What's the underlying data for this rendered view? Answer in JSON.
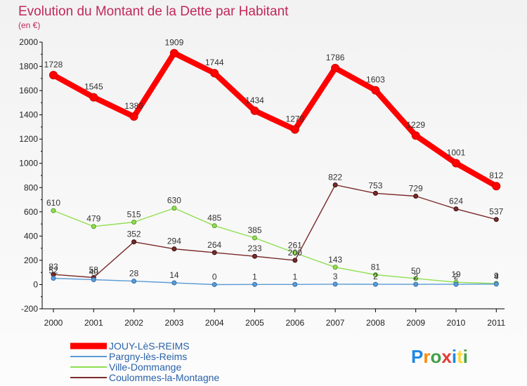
{
  "chart_data": {
    "type": "line",
    "title": "Evolution du Montant de la Dette par Habitant",
    "subtitle": "(en €)",
    "x": [
      "2000",
      "2001",
      "2002",
      "2003",
      "2004",
      "2005",
      "2006",
      "2007",
      "2008",
      "2009",
      "2010",
      "2011"
    ],
    "ylim": [
      -200,
      2000
    ],
    "yticks": [
      -200,
      0,
      200,
      400,
      600,
      800,
      1000,
      1200,
      1400,
      1600,
      1800,
      2000
    ],
    "grid": false,
    "legend_position": "bottom-left",
    "series": [
      {
        "name": "JOUY-LèS-REIMS",
        "color": "#ff0000",
        "values": [
          1728,
          1545,
          1386,
          1909,
          1744,
          1434,
          1279,
          1786,
          1603,
          1229,
          1001,
          812
        ]
      },
      {
        "name": "Pargny-lès-Reims",
        "color": "#5b9bd5",
        "values": [
          52,
          40,
          28,
          14,
          0,
          1,
          1,
          3,
          2,
          2,
          2,
          4
        ]
      },
      {
        "name": "Ville-Dommange",
        "color": "#90e050",
        "values": [
          610,
          479,
          515,
          630,
          485,
          385,
          261,
          143,
          81,
          50,
          19,
          9
        ]
      },
      {
        "name": "Coulommes-la-Montagne",
        "color": "#7a2a2a",
        "values": [
          83,
          58,
          352,
          294,
          264,
          233,
          200,
          822,
          753,
          729,
          624,
          537
        ]
      }
    ]
  },
  "logo": {
    "text": "Proxiti"
  }
}
